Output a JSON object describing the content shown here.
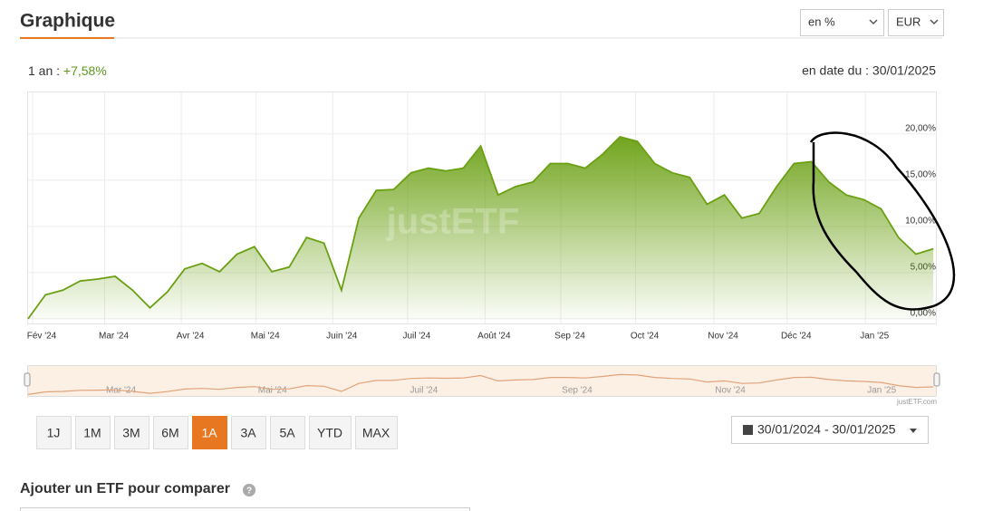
{
  "header": {
    "title": "Graphique",
    "unit_select": "en %",
    "currency_select": "EUR"
  },
  "summary": {
    "period": "1 an :",
    "performance": "+7,58%",
    "as_of": "en date du : 30/01/2025"
  },
  "chart_data": {
    "type": "area",
    "color": "#6aa012",
    "grid": true,
    "watermark": "justETF",
    "credit": "justETF.com",
    "values": [
      0,
      2.6,
      3.1,
      4.1,
      4.3,
      4.6,
      3.1,
      1.2,
      2.9,
      5.4,
      6.0,
      5.1,
      7.0,
      7.8,
      5.1,
      5.6,
      8.8,
      8.2,
      3.1,
      10.9,
      13.9,
      14.0,
      15.8,
      16.3,
      16.0,
      16.3,
      18.7,
      13.4,
      14.3,
      14.8,
      16.8,
      16.8,
      16.3,
      17.8,
      19.7,
      19.2,
      16.8,
      15.8,
      15.3,
      12.4,
      13.4,
      10.9,
      11.4,
      14.3,
      16.8,
      17.0,
      14.8,
      13.4,
      12.9,
      11.9,
      8.8,
      7.0,
      7.58
    ],
    "xlim": [
      0,
      52.2
    ],
    "xticks": [
      {
        "value": 0.26,
        "label": "Fév '24"
      },
      {
        "value": 4.4,
        "label": "Mar '24"
      },
      {
        "value": 8.8,
        "label": "Avr '24"
      },
      {
        "value": 13.1,
        "label": "Mai '24"
      },
      {
        "value": 17.5,
        "label": "Juin '24"
      },
      {
        "value": 21.8,
        "label": "Juil '24"
      },
      {
        "value": 26.25,
        "label": "Août '24"
      },
      {
        "value": 30.6,
        "label": "Sep '24"
      },
      {
        "value": 34.9,
        "label": "Oct '24"
      },
      {
        "value": 39.4,
        "label": "Nov '24"
      },
      {
        "value": 43.6,
        "label": "Déc '24"
      },
      {
        "value": 48.1,
        "label": "Jan '25"
      }
    ],
    "ylim": [
      -0.5,
      24.5
    ],
    "yticks": [
      {
        "value": 0,
        "label": "0,00%"
      },
      {
        "value": 5,
        "label": "5,00%"
      },
      {
        "value": 10,
        "label": "10,00%"
      },
      {
        "value": 15,
        "label": "15,00%"
      },
      {
        "value": 20,
        "label": "20,00%"
      }
    ]
  },
  "ranges": {
    "buttons": [
      "1J",
      "1M",
      "3M",
      "6M",
      "1A",
      "3A",
      "5A",
      "YTD",
      "MAX"
    ],
    "active": 4,
    "date_range": "30/01/2024 - 30/01/2025"
  },
  "compare": {
    "title": "Ajouter un ETF pour comparer"
  }
}
